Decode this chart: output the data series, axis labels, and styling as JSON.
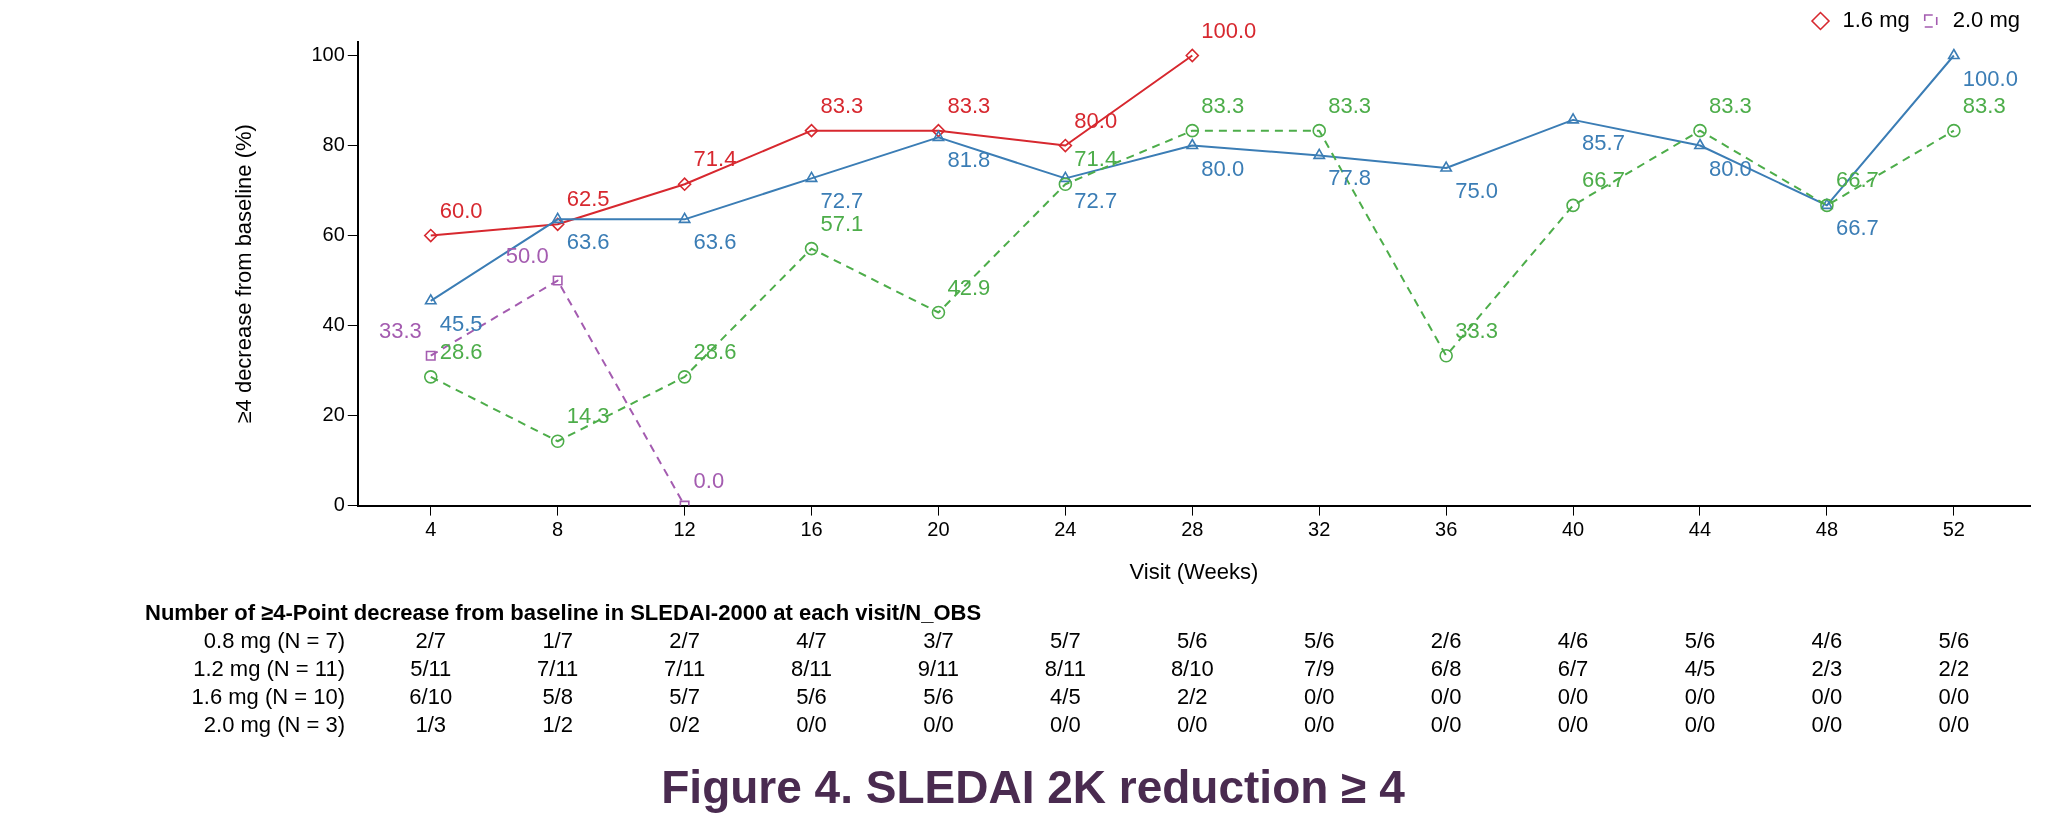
{
  "chart_data": {
    "type": "line",
    "title": "Figure 4. SLEDAI 2K reduction ≥ 4",
    "xlabel": "Visit (Weeks)",
    "ylabel": "≥4 decrease from baseline (%)",
    "x": [
      4,
      8,
      12,
      16,
      20,
      24,
      28,
      32,
      36,
      40,
      44,
      48,
      52
    ],
    "xlim": [
      1.7,
      54.4
    ],
    "xticks": [
      4,
      8,
      12,
      16,
      20,
      24,
      28,
      32,
      36,
      40,
      44,
      48,
      52
    ],
    "ylim": [
      0,
      103
    ],
    "yticks": [
      0,
      20,
      40,
      60,
      80,
      100
    ],
    "grid": false,
    "legend": "top right",
    "series": [
      {
        "color": "#4dad4a",
        "marker": "circle",
        "line_style": "dashed",
        "values": [
          28.6,
          14.3,
          28.6,
          57.1,
          42.9,
          71.4,
          83.3,
          83.3,
          33.3,
          66.7,
          83.3,
          66.7,
          83.3
        ],
        "value_labels": [
          "28.6",
          "14.3",
          "28.6",
          "57.1",
          "42.9",
          "71.4",
          "83.3",
          "83.3",
          "33.3",
          "66.7",
          "83.3",
          "66.7",
          "83.3"
        ]
      },
      {
        "color": "#3b7db5",
        "marker": "triangle",
        "line_style": "solid",
        "values": [
          45.5,
          63.6,
          63.6,
          72.7,
          81.8,
          72.7,
          80,
          77.8,
          75,
          85.7,
          80,
          66.7,
          100
        ],
        "value_labels": [
          "45.5",
          "63.6",
          "63.6",
          "72.7",
          "81.8",
          "72.7",
          "80.0",
          "77.8",
          "75.0",
          "85.7",
          "80.0",
          "66.7",
          "100.0"
        ]
      },
      {
        "name": "1.6 mg",
        "color": "#d7282f",
        "marker": "diamond",
        "line_style": "solid",
        "values": [
          60,
          62.5,
          71.4,
          83.3,
          83.3,
          80,
          100,
          null,
          null,
          null,
          null,
          null,
          null
        ],
        "value_labels": [
          "60.0",
          "62.5",
          "71.4",
          "83.3",
          "83.3",
          "80.0",
          "100.0",
          null,
          null,
          null,
          null,
          null,
          null
        ]
      },
      {
        "name": "2.0 mg",
        "color": "#a45cb0",
        "marker": "square",
        "line_style": "dashed",
        "values": [
          33.3,
          50,
          0,
          null,
          null,
          null,
          null,
          null,
          null,
          null,
          null,
          null,
          null
        ],
        "value_labels": [
          "33.3",
          "50.0",
          "0.0",
          null,
          null,
          null,
          null,
          null,
          null,
          null,
          null,
          null,
          null
        ]
      }
    ],
    "annotations": [
      "Number of  ≥4-Point decrease from baseline in SLEDAI-2000 at each visit/N_OBS",
      "0.8 mg (N = 7)",
      "2/7",
      "1/7",
      "2/7",
      "4/7",
      "3/7",
      "5/7",
      "5/6",
      "5/6",
      "2/6",
      "4/6",
      "5/6",
      "4/6",
      "5/6",
      "1.2 mg (N = 11)",
      "5/11",
      "7/11",
      "7/11",
      "8/11",
      "9/11",
      "8/11",
      "8/10",
      "7/9",
      "6/8",
      "6/7",
      "4/5",
      "2/3",
      "2/2",
      "1.6 mg (N = 10)",
      "6/10",
      "5/8",
      "5/7",
      "5/6",
      "5/6",
      "4/5",
      "2/2",
      "0/0",
      "0/0",
      "0/0",
      "0/0",
      "0/0",
      "0/0",
      "2.0 mg (N = 3)",
      "1/3",
      "1/2",
      "0/2",
      "0/0",
      "0/0",
      "0/0",
      "0/0",
      "0/0",
      "0/0",
      "0/0",
      "0/0",
      "0/0",
      "0/0"
    ]
  }
}
